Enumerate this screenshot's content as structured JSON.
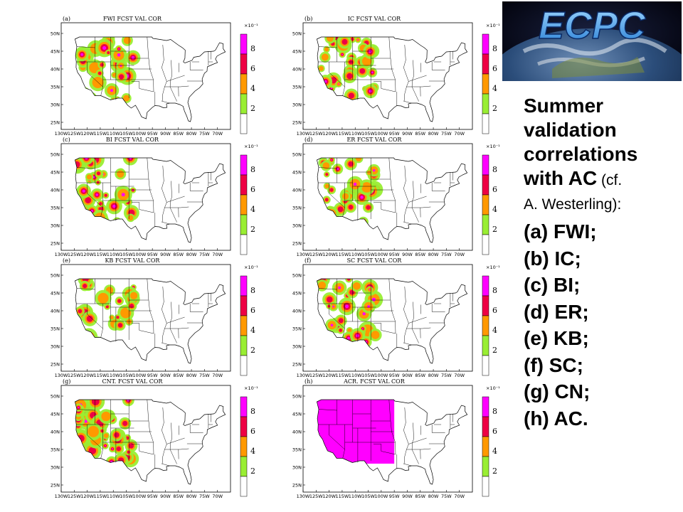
{
  "logo": {
    "text": "ECPC"
  },
  "caption": {
    "line1": "Summer",
    "line2": "validation",
    "line3": "correlations",
    "line4_bold": "with AC",
    "line4_normal": " (cf.",
    "line5": "A. Westerling):",
    "items": [
      "(a) FWI;",
      "(b) IC;",
      "(c) BI;",
      "(d) ER;",
      "(e) KB;",
      "(f) SC;",
      "(g) CN;",
      "(h) AC."
    ]
  },
  "axes": {
    "lat_labels": [
      "50N",
      "45N",
      "40N",
      "35N",
      "30N",
      "25N"
    ],
    "lon_labels": [
      "130W",
      "125W",
      "120W",
      "115W",
      "110W",
      "105W",
      "100W",
      "95W",
      "90W",
      "85W",
      "80W",
      "75W",
      "70W"
    ]
  },
  "colorbar": {
    "multiplier": "×10⁻¹",
    "labels": [
      "8",
      "6",
      "4",
      "2"
    ],
    "colors": [
      "#ff00ff",
      "#ee0044",
      "#ff9900",
      "#99ee33",
      "#ffffff"
    ]
  },
  "panels": [
    {
      "tag": "(a)",
      "title": "FWI FCST VAL COR",
      "cover": 0.55
    },
    {
      "tag": "(b)",
      "title": "IC FCST VAL COR",
      "cover": 0.6
    },
    {
      "tag": "(c)",
      "title": "BI FCST VAL COR",
      "cover": 0.65
    },
    {
      "tag": "(d)",
      "title": "ER FCST VAL COR",
      "cover": 0.55
    },
    {
      "tag": "(e)",
      "title": "KB FCST VAL COR",
      "cover": 0.45
    },
    {
      "tag": "(f)",
      "title": "SC FCST VAL COR",
      "cover": 0.55
    },
    {
      "tag": "(g)",
      "title": "CNT. FCST VAL COR",
      "cover": 0.75
    },
    {
      "tag": "(h)",
      "title": "ACR. FCST VAL COR",
      "cover": 1.0
    }
  ]
}
